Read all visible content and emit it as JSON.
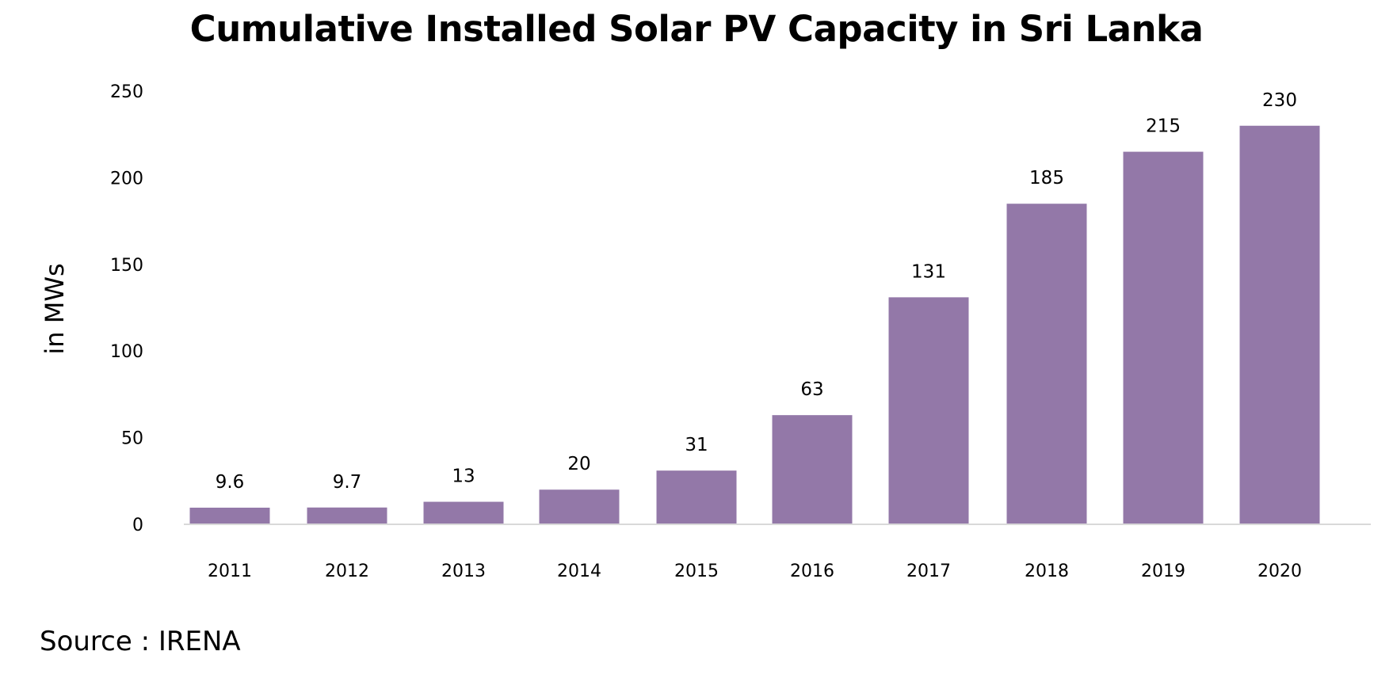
{
  "chart_data": {
    "type": "bar",
    "title": "Cumulative Installed Solar PV Capacity in Sri Lanka",
    "ylabel": "in MWs",
    "xlabel": "",
    "categories": [
      "2011",
      "2012",
      "2013",
      "2014",
      "2015",
      "2016",
      "2017",
      "2018",
      "2019",
      "2020"
    ],
    "values": [
      9.6,
      9.7,
      13,
      20,
      31,
      63,
      131,
      185,
      215,
      230
    ],
    "data_labels": [
      "9.6",
      "9.7",
      "13",
      "20",
      "31",
      "63",
      "131",
      "185",
      "215",
      "230"
    ],
    "ylim": [
      0,
      250
    ],
    "yticks": [
      0,
      50,
      100,
      150,
      200,
      250
    ],
    "grid": false,
    "legend": "none",
    "bar_color": "#9378A8",
    "baseline_color": "#D9D9D9"
  },
  "source": "Source : IRENA"
}
